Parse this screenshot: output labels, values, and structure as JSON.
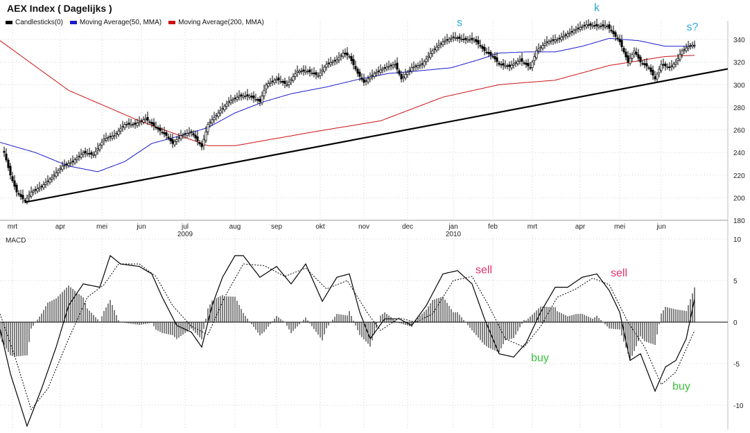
{
  "chart_data": [
    {
      "type": "line",
      "title": "AEX Index  ( Dagelijks )",
      "legend": [
        {
          "label": "Candlesticks(0)",
          "color": "#000000"
        },
        {
          "label": "Moving Average(50, MMA)",
          "color": "#1a1acc"
        },
        {
          "label": "Moving Average(200, MMA)",
          "color": "#cc1111"
        }
      ],
      "x_unit": "trading days",
      "xlim": [
        0,
        350
      ],
      "ylim": [
        180,
        355
      ],
      "yticks": [
        180,
        200,
        220,
        240,
        260,
        280,
        300,
        320,
        340
      ],
      "month_ticks": [
        {
          "day": 6,
          "label": "mrt"
        },
        {
          "day": 29,
          "label": "apr"
        },
        {
          "day": 49,
          "label": "mei"
        },
        {
          "day": 68,
          "label": "jun"
        },
        {
          "day": 89,
          "label": "jul",
          "year": "2009"
        },
        {
          "day": 113,
          "label": "aug"
        },
        {
          "day": 133,
          "label": "sep"
        },
        {
          "day": 154,
          "label": "okt"
        },
        {
          "day": 175,
          "label": "nov"
        },
        {
          "day": 196,
          "label": "dec"
        },
        {
          "day": 218,
          "label": "jan",
          "year": "2010"
        },
        {
          "day": 237,
          "label": "feb"
        },
        {
          "day": 256,
          "label": "mrt"
        },
        {
          "day": 279,
          "label": "apr"
        },
        {
          "day": 298,
          "label": "mei"
        },
        {
          "day": 318,
          "label": "jun"
        }
      ],
      "close": [
        [
          2,
          240
        ],
        [
          5,
          220
        ],
        [
          8,
          205
        ],
        [
          12,
          197
        ],
        [
          15,
          205
        ],
        [
          20,
          210
        ],
        [
          25,
          218
        ],
        [
          30,
          228
        ],
        [
          35,
          232
        ],
        [
          40,
          240
        ],
        [
          45,
          238
        ],
        [
          50,
          252
        ],
        [
          55,
          255
        ],
        [
          60,
          265
        ],
        [
          65,
          265
        ],
        [
          70,
          270
        ],
        [
          75,
          262
        ],
        [
          80,
          255
        ],
        [
          83,
          248
        ],
        [
          87,
          255
        ],
        [
          92,
          258
        ],
        [
          97,
          245
        ],
        [
          100,
          265
        ],
        [
          105,
          275
        ],
        [
          110,
          285
        ],
        [
          115,
          290
        ],
        [
          120,
          290
        ],
        [
          125,
          285
        ],
        [
          128,
          300
        ],
        [
          133,
          305
        ],
        [
          138,
          300
        ],
        [
          143,
          312
        ],
        [
          148,
          312
        ],
        [
          153,
          308
        ],
        [
          157,
          318
        ],
        [
          162,
          322
        ],
        [
          165,
          328
        ],
        [
          168,
          325
        ],
        [
          172,
          310
        ],
        [
          175,
          302
        ],
        [
          180,
          310
        ],
        [
          185,
          315
        ],
        [
          190,
          318
        ],
        [
          193,
          305
        ],
        [
          198,
          315
        ],
        [
          203,
          318
        ],
        [
          208,
          330
        ],
        [
          213,
          338
        ],
        [
          218,
          342
        ],
        [
          223,
          340
        ],
        [
          228,
          340
        ],
        [
          233,
          330
        ],
        [
          237,
          325
        ],
        [
          240,
          318
        ],
        [
          245,
          316
        ],
        [
          250,
          322
        ],
        [
          255,
          315
        ],
        [
          258,
          330
        ],
        [
          263,
          338
        ],
        [
          268,
          340
        ],
        [
          273,
          345
        ],
        [
          278,
          350
        ],
        [
          282,
          353
        ],
        [
          287,
          352
        ],
        [
          292,
          352
        ],
        [
          295,
          345
        ],
        [
          298,
          338
        ],
        [
          302,
          320
        ],
        [
          305,
          330
        ],
        [
          308,
          320
        ],
        [
          312,
          315
        ],
        [
          315,
          305
        ],
        [
          318,
          318
        ],
        [
          322,
          315
        ],
        [
          325,
          320
        ],
        [
          328,
          330
        ],
        [
          332,
          335
        ],
        [
          334,
          335
        ]
      ],
      "ma50": [
        [
          0,
          249
        ],
        [
          17,
          240
        ],
        [
          33,
          228
        ],
        [
          47,
          223
        ],
        [
          60,
          232
        ],
        [
          73,
          248
        ],
        [
          87,
          255
        ],
        [
          100,
          262
        ],
        [
          113,
          275
        ],
        [
          127,
          285
        ],
        [
          140,
          292
        ],
        [
          157,
          298
        ],
        [
          173,
          305
        ],
        [
          187,
          310
        ],
        [
          200,
          312
        ],
        [
          217,
          315
        ],
        [
          230,
          322
        ],
        [
          240,
          328
        ],
        [
          253,
          329
        ],
        [
          267,
          329
        ],
        [
          280,
          334
        ],
        [
          293,
          341
        ],
        [
          307,
          339
        ],
        [
          320,
          334
        ],
        [
          334,
          334
        ]
      ],
      "ma200": [
        [
          0,
          339
        ],
        [
          33,
          295
        ],
        [
          67,
          268
        ],
        [
          100,
          246
        ],
        [
          113,
          246
        ],
        [
          150,
          258
        ],
        [
          183,
          268
        ],
        [
          213,
          289
        ],
        [
          240,
          300
        ],
        [
          267,
          304
        ],
        [
          293,
          317
        ],
        [
          320,
          325
        ],
        [
          334,
          326
        ]
      ],
      "trendline": [
        [
          12,
          196
        ],
        [
          350,
          314
        ]
      ],
      "annotations": [
        {
          "text": "s",
          "day": 221,
          "value": 352,
          "color": "#2aa8d8"
        },
        {
          "text": "k",
          "day": 287,
          "value": 365,
          "color": "#2aa8d8"
        },
        {
          "text": "s?",
          "day": 333,
          "value": 348,
          "color": "#2aa8d8"
        }
      ]
    },
    {
      "type": "line",
      "title": "MACD",
      "ylim": [
        -13,
        10.5
      ],
      "yticks": [
        10,
        5,
        0,
        -5,
        -10
      ],
      "macd": [
        [
          0,
          -0.8
        ],
        [
          5,
          -6.2
        ],
        [
          13,
          -12.5
        ],
        [
          20,
          -8
        ],
        [
          27,
          -3
        ],
        [
          33,
          2
        ],
        [
          40,
          4.6
        ],
        [
          48,
          4.2
        ],
        [
          53,
          8
        ],
        [
          58,
          7
        ],
        [
          67,
          6.7
        ],
        [
          73,
          5.8
        ],
        [
          78,
          3
        ],
        [
          85,
          -0.4
        ],
        [
          92,
          -1.2
        ],
        [
          97,
          -3
        ],
        [
          102,
          2
        ],
        [
          107,
          5.4
        ],
        [
          113,
          8
        ],
        [
          117,
          8
        ],
        [
          125,
          5.4
        ],
        [
          133,
          6.7
        ],
        [
          140,
          4.6
        ],
        [
          147,
          7
        ],
        [
          155,
          2.5
        ],
        [
          162,
          5.4
        ],
        [
          168,
          5.8
        ],
        [
          173,
          1.2
        ],
        [
          178,
          -2
        ],
        [
          185,
          0.4
        ],
        [
          192,
          0.4
        ],
        [
          198,
          -0.4
        ],
        [
          205,
          2
        ],
        [
          213,
          5.8
        ],
        [
          220,
          6.2
        ],
        [
          227,
          4.6
        ],
        [
          233,
          0.4
        ],
        [
          240,
          -3.8
        ],
        [
          247,
          -4.2
        ],
        [
          253,
          -2.5
        ],
        [
          260,
          1.2
        ],
        [
          267,
          4.2
        ],
        [
          273,
          4.2
        ],
        [
          280,
          5.4
        ],
        [
          287,
          5.8
        ],
        [
          293,
          3.8
        ],
        [
          298,
          1.2
        ],
        [
          303,
          -4.6
        ],
        [
          308,
          -3.8
        ],
        [
          315,
          -8.3
        ],
        [
          320,
          -5.4
        ],
        [
          325,
          -4.6
        ],
        [
          330,
          -2
        ],
        [
          334,
          2.8
        ]
      ],
      "signal": [
        [
          0,
          1
        ],
        [
          7,
          -4
        ],
        [
          15,
          -10.5
        ],
        [
          23,
          -8
        ],
        [
          33,
          -2
        ],
        [
          42,
          3
        ],
        [
          50,
          4.5
        ],
        [
          57,
          7
        ],
        [
          67,
          7
        ],
        [
          75,
          5.5
        ],
        [
          83,
          2
        ],
        [
          92,
          -0.5
        ],
        [
          100,
          -1.5
        ],
        [
          108,
          3
        ],
        [
          117,
          7
        ],
        [
          127,
          6.8
        ],
        [
          137,
          5.5
        ],
        [
          147,
          6.5
        ],
        [
          157,
          4
        ],
        [
          167,
          5
        ],
        [
          177,
          1
        ],
        [
          183,
          -1
        ],
        [
          192,
          0.5
        ],
        [
          200,
          0
        ],
        [
          208,
          1
        ],
        [
          218,
          5
        ],
        [
          227,
          5.5
        ],
        [
          235,
          2
        ],
        [
          243,
          -2
        ],
        [
          252,
          -3
        ],
        [
          260,
          -0.5
        ],
        [
          268,
          3
        ],
        [
          277,
          4
        ],
        [
          285,
          5.3
        ],
        [
          293,
          4.5
        ],
        [
          302,
          0
        ],
        [
          310,
          -3
        ],
        [
          318,
          -7.5
        ],
        [
          325,
          -6
        ],
        [
          334,
          -1
        ]
      ],
      "annotations": [
        {
          "text": "sell",
          "day": 228,
          "value": 6.3,
          "color": "#e0306a"
        },
        {
          "text": "sell",
          "day": 293,
          "value": 5.9,
          "color": "#e0306a"
        },
        {
          "text": "buy",
          "day": 255,
          "value": -4.3,
          "color": "#3cbf3c"
        },
        {
          "text": "buy",
          "day": 323,
          "value": -7.7,
          "color": "#3cbf3c"
        }
      ]
    }
  ]
}
